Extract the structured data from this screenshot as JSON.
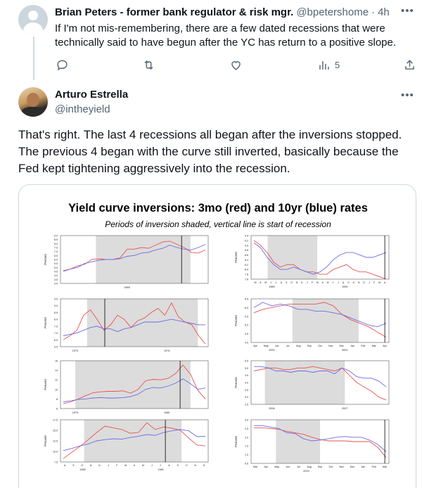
{
  "tweet1": {
    "author_name": "Brian Peters - former bank regulator & risk mgr.",
    "handle": "@bpetershome",
    "separator": "·",
    "time": "4h",
    "text": "If I'm not mis-remembering, there are a few dated recessions that were technically said to have begun after the YC has return to a positive slope.",
    "views_count": "5"
  },
  "tweet2": {
    "author_name": "Arturo Estrella",
    "handle": "@intheyield",
    "text": "That's right. The last 4 recessions all began after the inversions stopped. The previous 4 began with the curve still inverted, basically because the Fed kept tightening aggressively into the recession."
  },
  "figure": {
    "title": "Yield curve inversions: 3mo (red) and 10yr (blue) rates",
    "subtitle": "Periods of inversion shaded, vertical line is start of recession"
  },
  "colors": {
    "red": "#e8534f",
    "blue": "#6b6be8",
    "shade": "#dcdcdc",
    "muted": "#536471",
    "link": "#1d9bf0"
  },
  "icons": [
    "more-icon",
    "reply-icon",
    "retweet-icon",
    "like-icon",
    "views-icon",
    "share-icon",
    "default-avatar-icon"
  ],
  "chart_data": [
    {
      "type": "line",
      "y_label": "Percent",
      "x_tick_labels": [
        "1969"
      ],
      "y_tick_labels": [
        "3.0",
        "3.5",
        "4.0",
        "4.5",
        "5.0",
        "5.5",
        "6.0",
        "6.5",
        "7.0",
        "7.5",
        "8.0",
        "8.5",
        "9.0"
      ],
      "ylim": [
        3.0,
        9.0
      ],
      "shade": [
        0.24,
        0.88
      ],
      "recession_line": 0.82,
      "series": [
        {
          "color": "red",
          "values": [
            4.6,
            4.8,
            5.2,
            5.4,
            6.0,
            6.1,
            6.0,
            6.0,
            6.2,
            7.3,
            7.3,
            7.5,
            7.4,
            7.8,
            8.2,
            8.3,
            7.9,
            7.5,
            6.9,
            6.8,
            7.2
          ]
        },
        {
          "color": "blue",
          "values": [
            4.5,
            4.8,
            5.0,
            5.5,
            5.7,
            5.9,
            6.0,
            6.0,
            6.1,
            6.4,
            6.5,
            6.8,
            6.9,
            7.2,
            7.4,
            7.8,
            7.5,
            7.3,
            7.2,
            7.5,
            7.9
          ]
        }
      ]
    },
    {
      "type": "line",
      "y_label": "Percent",
      "x_tick_labels": [
        "M",
        "A",
        "M",
        "J",
        "J",
        "A",
        "S",
        "O",
        "N",
        "D",
        "J",
        "F",
        "M",
        "A",
        "M",
        "J",
        "J",
        "A",
        "S",
        "O",
        "N",
        "D",
        "J",
        "F",
        "M",
        "A"
      ],
      "x_year_labels": [
        "1989",
        "1990"
      ],
      "y_tick_labels": [
        "7.6",
        "7.8",
        "8.0",
        "8.2",
        "8.4",
        "8.6",
        "8.8",
        "9.0",
        "9.2",
        "9.4"
      ],
      "ylim": [
        7.6,
        9.4
      ],
      "shade": [
        0.12,
        0.48
      ],
      "recession_line": 0.97,
      "series": [
        {
          "color": "red",
          "values": [
            9.2,
            9.0,
            8.7,
            8.3,
            8.1,
            8.2,
            8.2,
            8.0,
            7.9,
            7.9,
            7.8,
            7.8,
            8.0,
            8.1,
            8.2,
            8.0,
            7.9,
            7.9,
            7.8,
            7.7,
            7.6
          ]
        },
        {
          "color": "blue",
          "values": [
            9.1,
            8.9,
            8.5,
            8.2,
            8.0,
            8.0,
            8.1,
            8.0,
            7.9,
            7.8,
            7.9,
            8.1,
            8.4,
            8.6,
            8.7,
            8.7,
            8.6,
            8.5,
            8.5,
            8.6,
            8.7
          ]
        }
      ]
    },
    {
      "type": "line",
      "y_label": "Percent",
      "x_tick_labels": [
        "1973",
        "1974"
      ],
      "y_tick_labels": [
        "6.0",
        "6.5",
        "7.0",
        "7.5",
        "8.0",
        "8.5",
        "9.0",
        "9.5"
      ],
      "ylim": [
        6.0,
        9.5
      ],
      "shade": [
        0.18,
        0.93
      ],
      "recession_line": 0.3,
      "series": [
        {
          "color": "red",
          "values": [
            6.5,
            6.8,
            7.2,
            8.3,
            8.7,
            8.0,
            7.2,
            7.6,
            8.3,
            8.0,
            7.4,
            7.9,
            8.1,
            8.5,
            8.8,
            8.3,
            9.2,
            8.2,
            7.8,
            7.6,
            6.8,
            6.2
          ]
        },
        {
          "color": "blue",
          "values": [
            6.8,
            6.9,
            7.0,
            7.2,
            7.4,
            7.5,
            7.3,
            7.3,
            7.1,
            7.3,
            7.4,
            7.6,
            7.8,
            7.8,
            7.8,
            7.9,
            8.0,
            7.9,
            7.8,
            7.7,
            7.6,
            7.6
          ]
        }
      ]
    },
    {
      "type": "line",
      "y_label": "Percent",
      "x_tick_labels": [
        "Apr",
        "May",
        "Jun",
        "Jul",
        "Aug",
        "Sep",
        "Oct",
        "Nov",
        "Dec",
        "Jan",
        "Feb",
        "Mar",
        "Apr"
      ],
      "x_year_labels": [
        "2000",
        "2001"
      ],
      "y_tick_labels": [
        "4.0",
        "4.5",
        "5.0",
        "5.5",
        "6.0",
        "6.5"
      ],
      "ylim": [
        4.0,
        6.5
      ],
      "shade": [
        0.3,
        0.78
      ],
      "recession_line": 0.97,
      "series": [
        {
          "color": "red",
          "values": [
            5.7,
            5.9,
            6.0,
            6.1,
            6.2,
            6.2,
            6.2,
            6.2,
            6.3,
            6.1,
            5.6,
            5.3,
            5.1,
            4.9,
            4.6,
            4.3
          ]
        },
        {
          "color": "blue",
          "values": [
            6.0,
            6.3,
            6.1,
            6.2,
            6.1,
            5.9,
            5.9,
            5.8,
            5.8,
            5.7,
            5.6,
            5.4,
            5.2,
            5.0,
            4.9,
            5.1
          ]
        }
      ]
    },
    {
      "type": "line",
      "y_label": "Percent",
      "x_tick_labels": [
        "1979",
        "1980"
      ],
      "y_tick_labels": [
        "6",
        "8",
        "10",
        "12",
        "14",
        "16"
      ],
      "ylim": [
        6,
        16
      ],
      "shade": [
        0.1,
        0.88
      ],
      "recession_line": 0.81,
      "series": [
        {
          "color": "red",
          "values": [
            7.0,
            7.4,
            8.0,
            8.7,
            9.3,
            9.5,
            9.6,
            9.6,
            9.7,
            9.2,
            10.0,
            11.8,
            12.1,
            12.0,
            12.3,
            13.3,
            15.1,
            13.2,
            9.8,
            8.0
          ]
        },
        {
          "color": "blue",
          "values": [
            7.4,
            7.6,
            7.9,
            8.0,
            8.2,
            8.3,
            8.2,
            8.2,
            8.3,
            8.5,
            9.0,
            10.0,
            10.4,
            10.3,
            10.7,
            11.3,
            12.2,
            11.2,
            10.0,
            10.3
          ]
        }
      ]
    },
    {
      "type": "line",
      "y_label": "Percent",
      "x_tick_labels": [],
      "x_year_labels": [
        "2006",
        "2007"
      ],
      "y_tick_labels": [
        "2.5",
        "3.0",
        "3.5",
        "4.0",
        "4.5",
        "5.0",
        "5.5"
      ],
      "ylim": [
        2.5,
        5.5
      ],
      "shade": [
        0.1,
        0.68
      ],
      "recession_line": 0.0,
      "series": [
        {
          "color": "red",
          "values": [
            4.8,
            4.9,
            5.0,
            5.0,
            4.9,
            4.9,
            5.0,
            5.0,
            5.1,
            5.0,
            4.9,
            4.8,
            5.0,
            4.5,
            4.0,
            3.7,
            3.4,
            3.0,
            2.8
          ]
        },
        {
          "color": "blue",
          "values": [
            5.1,
            5.1,
            5.0,
            4.8,
            4.8,
            4.7,
            4.8,
            4.8,
            4.7,
            4.8,
            4.8,
            4.6,
            5.0,
            4.8,
            4.4,
            4.3,
            4.3,
            4.1,
            3.7
          ]
        }
      ]
    },
    {
      "type": "line",
      "y_label": "Percent",
      "x_tick_labels": [
        "A",
        "S",
        "O",
        "N",
        "D",
        "J",
        "F",
        "M",
        "A",
        "M",
        "J",
        "J",
        "A",
        "S",
        "O",
        "N",
        "D"
      ],
      "x_year_labels": [
        "1980",
        "1981"
      ],
      "y_tick_labels": [
        "7.5",
        "10.0",
        "12.5",
        "15.0",
        "17.5"
      ],
      "ylim": [
        7.5,
        17.5
      ],
      "shade": [
        0.16,
        0.82
      ],
      "recession_line": 0.71,
      "series": [
        {
          "color": "red",
          "values": [
            8.3,
            9.8,
            11.2,
            12.8,
            14.5,
            16.0,
            15.6,
            15.2,
            14.3,
            14.5,
            16.8,
            15.2,
            15.8,
            15.5,
            15.0,
            13.2,
            11.5,
            11.3
          ]
        },
        {
          "color": "blue",
          "values": [
            10.2,
            10.7,
            11.3,
            11.8,
            12.5,
            12.8,
            13.0,
            12.9,
            13.3,
            13.6,
            14.0,
            13.8,
            14.5,
            14.9,
            15.2,
            14.9,
            13.5,
            13.6
          ]
        }
      ]
    },
    {
      "type": "line",
      "y_label": "Percent",
      "x_tick_labels": [
        "Mar",
        "Apr",
        "May",
        "Jun",
        "Jul",
        "Aug",
        "Sep",
        "Oct",
        "Nov",
        "Dec",
        "Jan",
        "Feb",
        "Mar"
      ],
      "x_year_labels": [
        "2019"
      ],
      "y_tick_labels": [
        "0.5",
        "1.0",
        "1.5",
        "2.0",
        "2.5",
        "3.0"
      ],
      "ylim": [
        0.0,
        3.0
      ],
      "shade": [
        0.18,
        0.5
      ],
      "recession_line": 0.97,
      "series": [
        {
          "color": "red",
          "values": [
            2.45,
            2.45,
            2.4,
            2.35,
            2.2,
            2.1,
            2.0,
            1.8,
            1.65,
            1.55,
            1.55,
            1.55,
            1.5,
            1.5,
            1.5,
            1.1,
            0.4
          ]
        },
        {
          "color": "blue",
          "values": [
            2.6,
            2.6,
            2.5,
            2.4,
            2.1,
            2.05,
            1.7,
            1.55,
            1.6,
            1.7,
            1.8,
            1.85,
            1.8,
            1.8,
            1.6,
            1.3,
            0.8
          ]
        }
      ]
    }
  ]
}
